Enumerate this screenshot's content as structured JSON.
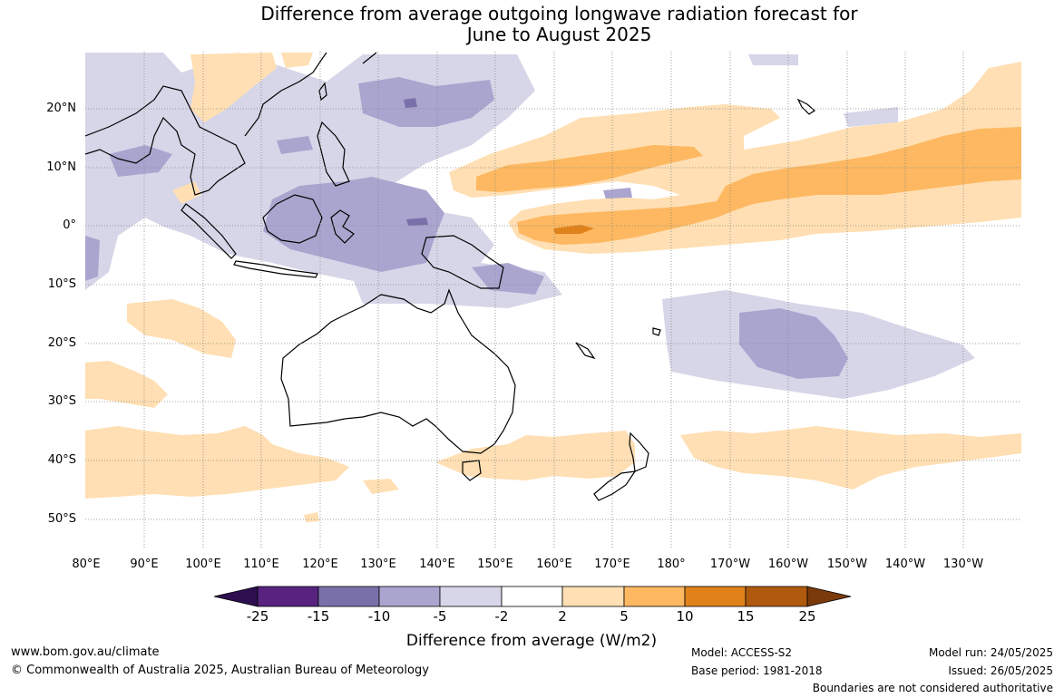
{
  "title_line1": "Difference from average outgoing longwave radiation forecast for",
  "title_line2": "June to August 2025",
  "lat_labels": [
    "20°N",
    "10°N",
    "0°",
    "10°S",
    "20°S",
    "30°S",
    "40°S",
    "50°S"
  ],
  "lon_labels": [
    "80°E",
    "90°E",
    "100°E",
    "110°E",
    "120°E",
    "130°E",
    "140°E",
    "150°E",
    "160°E",
    "170°E",
    "180°",
    "170°W",
    "160°W",
    "150°W",
    "140°W",
    "130°W"
  ],
  "colorbar": {
    "ticks": [
      "-25",
      "-15",
      "-10",
      "-5",
      "-2",
      "2",
      "5",
      "10",
      "15",
      "25"
    ],
    "title": "Difference from average (W/m2)",
    "colors": [
      "#2d0f4f",
      "#58237f",
      "#7a70a9",
      "#aaa5cf",
      "#d6d6e8",
      "#ffffff",
      "#ffdfb3",
      "#fdb861",
      "#e0821c",
      "#b05a0f",
      "#7b3a0a"
    ]
  },
  "footer": {
    "website": "www.bom.gov.au/climate",
    "copyright": "© Commonwealth of Australia 2025, Australian Bureau of Meteorology",
    "model": "Model: ACCESS-S2",
    "base_period": "Base period: 1981-2018",
    "model_run": "Model run: 24/05/2025",
    "issued": "Issued: 26/05/2025",
    "disclaimer": "Boundaries are not considered authoritative"
  }
}
